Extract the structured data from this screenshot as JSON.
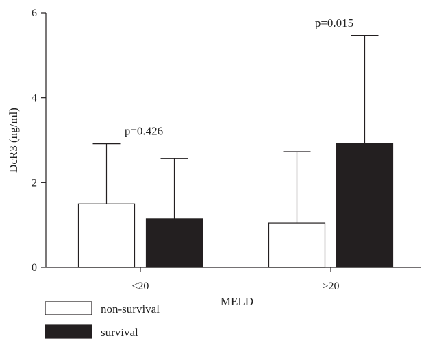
{
  "chart_data": {
    "type": "bar",
    "categories": [
      "≤20",
      ">20"
    ],
    "series": [
      {
        "name": "non-survival",
        "values": [
          1.5,
          1.05
        ],
        "error_upper": [
          2.92,
          2.73
        ],
        "color": "#ffffff"
      },
      {
        "name": "survival",
        "values": [
          1.15,
          2.92
        ],
        "error_upper": [
          2.57,
          5.47
        ],
        "color": "#231f20"
      }
    ],
    "xlabel": "MELD",
    "ylabel": "DcR3 (ng/ml)",
    "ylim": [
      0,
      6
    ],
    "yticks": [
      0,
      2,
      4,
      6
    ],
    "annotations": [
      {
        "text": "p=0.426",
        "category": "≤20"
      },
      {
        "text": "p=0.015",
        "category": ">20"
      }
    ],
    "legend_position": "bottom-left",
    "grid": false
  }
}
